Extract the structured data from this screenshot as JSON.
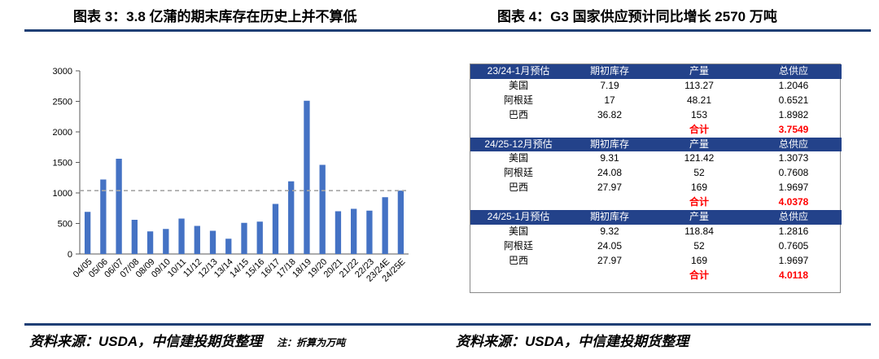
{
  "left_title": "图表 3：3.8 亿蒲的期末库存在历史上并不算低",
  "right_title": "图表 4：G3 国家供应预计同比增长 2570 万吨",
  "chart_data": {
    "type": "bar",
    "title": "",
    "xlabel": "",
    "ylabel": "",
    "ylim": [
      0,
      3000
    ],
    "yticks": [
      0,
      500,
      1000,
      1500,
      2000,
      2500,
      3000
    ],
    "categories": [
      "04/05",
      "05/06",
      "06/07",
      "07/08",
      "08/09",
      "09/10",
      "10/11",
      "11/12",
      "12/13",
      "13/14",
      "14/15",
      "15/16",
      "16/17",
      "17/18",
      "18/19",
      "19/20",
      "20/21",
      "21/22",
      "22/23",
      "23/24E",
      "24/25E"
    ],
    "values": [
      690,
      1220,
      1560,
      560,
      370,
      410,
      580,
      460,
      380,
      250,
      510,
      530,
      820,
      1190,
      2510,
      1460,
      700,
      740,
      710,
      930,
      1038
    ],
    "reference_line": 1038,
    "bar_color": "#4472c4",
    "reference_color": "#a6a6a6"
  },
  "table": {
    "sections": [
      {
        "header": [
          "23/24-1月预估",
          "期初库存",
          "产量",
          "总供应"
        ],
        "rows": [
          [
            "美国",
            "7.19",
            "113.27",
            "1.2046"
          ],
          [
            "阿根廷",
            "17",
            "48.21",
            "0.6521"
          ],
          [
            "巴西",
            "36.82",
            "153",
            "1.8982"
          ]
        ],
        "total_label": "合计",
        "total_value": "3.7549"
      },
      {
        "header": [
          "24/25-12月预估",
          "期初库存",
          "产量",
          "总供应"
        ],
        "rows": [
          [
            "美国",
            "9.31",
            "121.42",
            "1.3073"
          ],
          [
            "阿根廷",
            "24.08",
            "52",
            "0.7608"
          ],
          [
            "巴西",
            "27.97",
            "169",
            "1.9697"
          ]
        ],
        "total_label": "合计",
        "total_value": "4.0378"
      },
      {
        "header": [
          "24/25-1月预估",
          "期初库存",
          "产量",
          "总供应"
        ],
        "rows": [
          [
            "美国",
            "9.32",
            "118.84",
            "1.2816"
          ],
          [
            "阿根廷",
            "24.05",
            "52",
            "0.7605"
          ],
          [
            "巴西",
            "27.97",
            "169",
            "1.9697"
          ]
        ],
        "total_label": "合计",
        "total_value": "4.0118"
      }
    ]
  },
  "source_left": "资料来源：USDA，中信建投期货整理",
  "note": "注：折算为万吨",
  "source_right": "资料来源：USDA，中信建投期货整理",
  "colors": {
    "brand_blue": "#1f3f75",
    "header_blue": "#23428a",
    "total_red": "#ff0000"
  }
}
